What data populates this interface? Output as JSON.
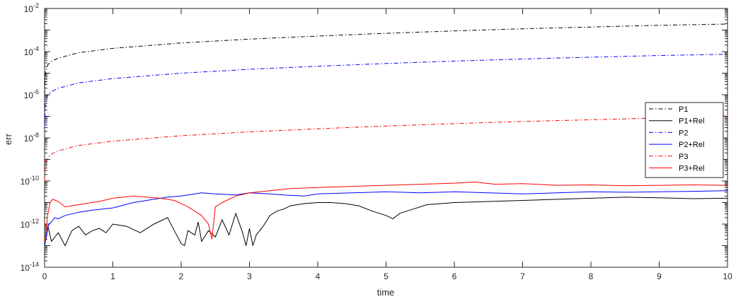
{
  "chart_data": {
    "type": "line",
    "title": "",
    "xlabel": "time",
    "ylabel": "err",
    "xlim": [
      0,
      10
    ],
    "ylim_log10": [
      -14,
      -2
    ],
    "yscale": "log",
    "grid": false,
    "legend_position": "right, mid-height",
    "x_ticks": [
      "0",
      "1",
      "2",
      "3",
      "4",
      "5",
      "6",
      "7",
      "8",
      "9",
      "10"
    ],
    "y_ticks": [
      {
        "base": "10",
        "exp": "-14"
      },
      {
        "base": "10",
        "exp": "-12"
      },
      {
        "base": "10",
        "exp": "-10"
      },
      {
        "base": "10",
        "exp": "-8"
      },
      {
        "base": "10",
        "exp": "-6"
      },
      {
        "base": "10",
        "exp": "-4"
      },
      {
        "base": "10",
        "exp": "-2"
      }
    ],
    "series": [
      {
        "name": "P1",
        "color": "#000000",
        "dash": "dashdot",
        "x": [
          0,
          0.01,
          0.05,
          0.1,
          0.2,
          0.5,
          1,
          2,
          3,
          4,
          5,
          6,
          7,
          8,
          9,
          10
        ],
        "log10_y": [
          -6.0,
          -5.0,
          -4.6,
          -4.45,
          -4.3,
          -4.05,
          -3.85,
          -3.6,
          -3.42,
          -3.28,
          -3.15,
          -3.04,
          -2.94,
          -2.86,
          -2.78,
          -2.72
        ]
      },
      {
        "name": "P1+Rel",
        "color": "#000000",
        "dash": "solid",
        "x": [
          0,
          0.05,
          0.1,
          0.2,
          0.3,
          0.4,
          0.5,
          0.6,
          0.7,
          0.8,
          0.9,
          1.0,
          1.2,
          1.4,
          1.6,
          1.8,
          1.9,
          2.0,
          2.05,
          2.1,
          2.2,
          2.25,
          2.3,
          2.4,
          2.5,
          2.6,
          2.7,
          2.8,
          2.9,
          2.95,
          3.0,
          3.05,
          3.1,
          3.2,
          3.3,
          3.4,
          3.5,
          3.6,
          3.8,
          4.0,
          4.2,
          4.4,
          4.6,
          4.8,
          5.0,
          5.1,
          5.2,
          5.4,
          5.6,
          6.0,
          6.5,
          7.0,
          7.5,
          8.0,
          8.5,
          9.0,
          9.5,
          10
        ],
        "log10_y": [
          -13.0,
          -12.1,
          -12.8,
          -12.4,
          -13.0,
          -12.3,
          -12.1,
          -12.5,
          -12.3,
          -12.2,
          -12.4,
          -12.0,
          -12.1,
          -12.4,
          -12.0,
          -11.7,
          -12.3,
          -12.9,
          -13.0,
          -12.3,
          -12.5,
          -11.9,
          -12.8,
          -12.3,
          -12.6,
          -11.8,
          -12.5,
          -11.5,
          -12.4,
          -13.0,
          -12.2,
          -13.0,
          -12.5,
          -12.1,
          -11.6,
          -11.4,
          -11.3,
          -11.15,
          -11.05,
          -11.0,
          -11.0,
          -11.05,
          -11.15,
          -11.4,
          -11.6,
          -11.75,
          -11.5,
          -11.3,
          -11.1,
          -11.0,
          -10.95,
          -10.9,
          -10.85,
          -10.8,
          -10.75,
          -10.78,
          -10.82,
          -10.8
        ]
      },
      {
        "name": "P2",
        "color": "#0000ff",
        "dash": "dashdot",
        "x": [
          0,
          0.01,
          0.05,
          0.1,
          0.2,
          0.5,
          1,
          2,
          3,
          4,
          5,
          6,
          7,
          8,
          9,
          10
        ],
        "log10_y": [
          -7.5,
          -6.4,
          -6.0,
          -5.85,
          -5.7,
          -5.45,
          -5.25,
          -5.0,
          -4.82,
          -4.68,
          -4.55,
          -4.44,
          -4.34,
          -4.26,
          -4.18,
          -4.12
        ]
      },
      {
        "name": "P2+Rel",
        "color": "#0000ff",
        "dash": "solid",
        "x": [
          0,
          0.03,
          0.06,
          0.1,
          0.15,
          0.2,
          0.3,
          0.5,
          0.7,
          1.0,
          1.3,
          1.6,
          1.8,
          2.0,
          2.3,
          2.5,
          2.8,
          3.0,
          3.3,
          3.5,
          3.8,
          4.0,
          4.5,
          5.0,
          5.5,
          6.0,
          6.5,
          7.0,
          7.5,
          8.0,
          8.5,
          9.0,
          9.5,
          10
        ],
        "log10_y": [
          -13.0,
          -12.5,
          -12.0,
          -11.9,
          -11.7,
          -11.75,
          -11.6,
          -11.45,
          -11.35,
          -11.25,
          -11.0,
          -10.85,
          -10.75,
          -10.7,
          -10.55,
          -10.6,
          -10.65,
          -10.55,
          -10.6,
          -10.65,
          -10.7,
          -10.6,
          -10.55,
          -10.5,
          -10.55,
          -10.5,
          -10.55,
          -10.6,
          -10.55,
          -10.5,
          -10.52,
          -10.5,
          -10.48,
          -10.45
        ]
      },
      {
        "name": "P3",
        "color": "#ff0000",
        "dash": "dashdot",
        "x": [
          0,
          0.01,
          0.05,
          0.1,
          0.2,
          0.5,
          1,
          2,
          3,
          4,
          5,
          6,
          7,
          8,
          9,
          10
        ],
        "log10_y": [
          -10.0,
          -9.2,
          -8.9,
          -8.75,
          -8.6,
          -8.35,
          -8.15,
          -7.9,
          -7.72,
          -7.58,
          -7.45,
          -7.34,
          -7.24,
          -7.16,
          -7.08,
          -6.98
        ]
      },
      {
        "name": "P3+Rel",
        "color": "#ff0000",
        "dash": "solid",
        "x": [
          0,
          0.05,
          0.08,
          0.12,
          0.2,
          0.3,
          0.5,
          0.8,
          1.0,
          1.3,
          1.5,
          1.7,
          1.9,
          2.1,
          2.3,
          2.4,
          2.45,
          2.5,
          2.6,
          2.8,
          3.0,
          3.3,
          3.6,
          4.0,
          4.5,
          5.0,
          5.5,
          6.0,
          6.3,
          6.6,
          7.0,
          7.5,
          8.0,
          8.5,
          9.0,
          9.5,
          10
        ],
        "log10_y": [
          -12.8,
          -11.5,
          -11.0,
          -10.85,
          -10.95,
          -11.2,
          -11.1,
          -10.95,
          -10.8,
          -10.7,
          -10.75,
          -10.8,
          -10.9,
          -11.2,
          -11.6,
          -12.0,
          -12.7,
          -11.2,
          -11.0,
          -10.7,
          -10.55,
          -10.45,
          -10.35,
          -10.3,
          -10.25,
          -10.2,
          -10.15,
          -10.1,
          -10.05,
          -10.15,
          -10.12,
          -10.2,
          -10.18,
          -10.22,
          -10.2,
          -10.18,
          -10.2
        ]
      }
    ]
  }
}
